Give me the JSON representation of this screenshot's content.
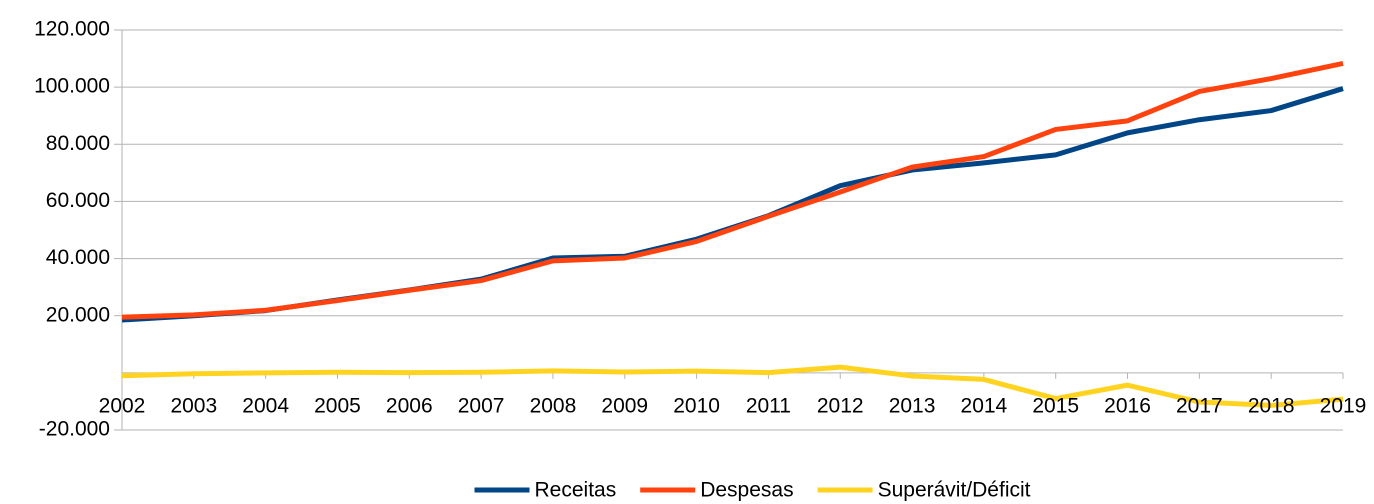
{
  "chart_data": {
    "type": "line",
    "categories": [
      "2002",
      "2003",
      "2004",
      "2005",
      "2006",
      "2007",
      "2008",
      "2009",
      "2010",
      "2011",
      "2012",
      "2013",
      "2014",
      "2015",
      "2016",
      "2017",
      "2018",
      "2019"
    ],
    "series": [
      {
        "name": "Receitas",
        "color": "#004586",
        "values": [
          18500,
          20000,
          21800,
          25500,
          29000,
          32800,
          40200,
          40800,
          46800,
          55000,
          65500,
          71000,
          73500,
          76300,
          84000,
          88600,
          91800,
          99500
        ]
      },
      {
        "name": "Despesas",
        "color": "#ff420e",
        "values": [
          19500,
          20300,
          21900,
          25300,
          28900,
          32300,
          39200,
          40200,
          46000,
          54800,
          63300,
          72000,
          75700,
          85200,
          88200,
          98500,
          103000,
          108300
        ]
      },
      {
        "name": "Superávit/Déficit",
        "color": "#ffd320",
        "values": [
          -1000,
          -300,
          0,
          200,
          100,
          200,
          700,
          300,
          600,
          100,
          2000,
          -1100,
          -2300,
          -9000,
          -4300,
          -10200,
          -11400,
          -9200
        ]
      }
    ],
    "ylim": [
      -20000,
      120000
    ],
    "yticks": [
      {
        "value": -20000,
        "label": "-20.000"
      },
      {
        "value": 20000,
        "label": "20.000"
      },
      {
        "value": 40000,
        "label": "40.000"
      },
      {
        "value": 60000,
        "label": "60.000"
      },
      {
        "value": 80000,
        "label": "80.000"
      },
      {
        "value": 100000,
        "label": "100.000"
      },
      {
        "value": 120000,
        "label": "120.000"
      }
    ],
    "grid": true,
    "legend": "bottom"
  }
}
